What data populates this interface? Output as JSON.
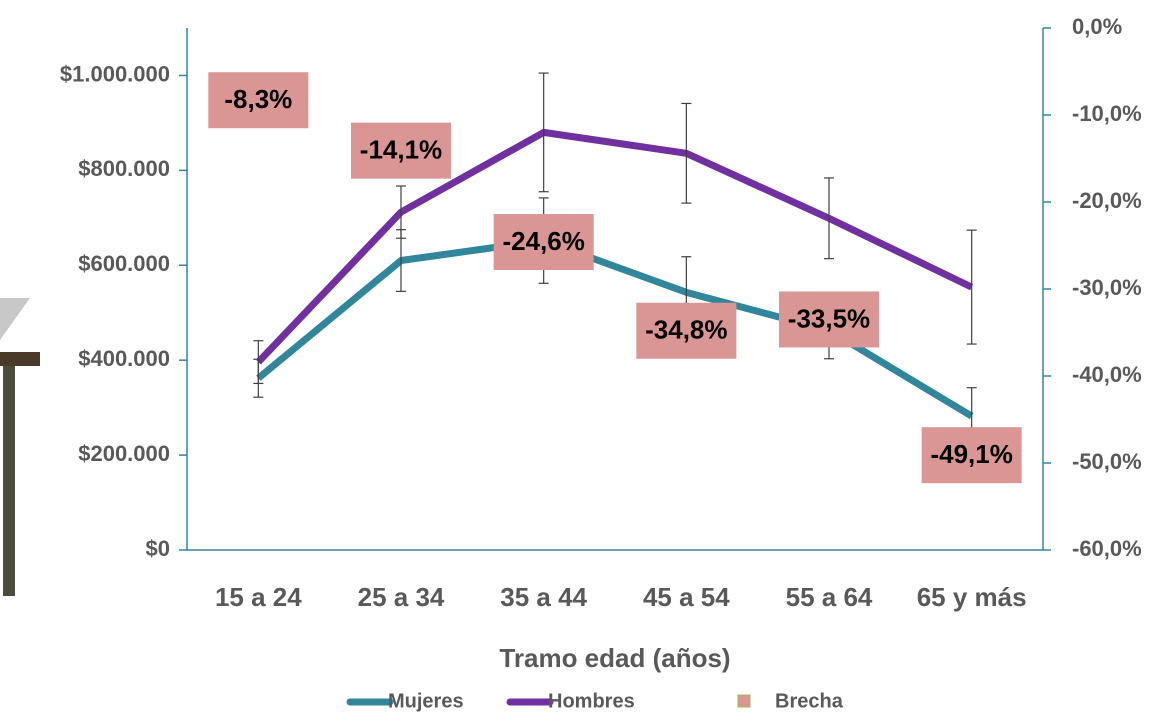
{
  "chart_data": {
    "type": "line",
    "x_label": "Tramo edad (años)",
    "categories": [
      "15 a 24",
      "25 a 34",
      "35 a 44",
      "45 a 54",
      "55 a 64",
      "65 y más"
    ],
    "series": [
      {
        "name": "Mujeres",
        "color": "#31869b",
        "values": [
          362000,
          610000,
          652000,
          543000,
          463000,
          282000
        ],
        "errors": [
          40000,
          65000,
          90000,
          75000,
          60000,
          60000
        ]
      },
      {
        "name": "Hombres",
        "color": "#7030a0",
        "values": [
          396000,
          712000,
          880000,
          836000,
          699000,
          554000
        ],
        "errors": [
          45000,
          55000,
          125000,
          105000,
          85000,
          120000
        ]
      },
      {
        "name": "Brecha",
        "color": "#da9694",
        "axis": "y2",
        "values": [
          -8.3,
          -14.1,
          -24.6,
          -34.8,
          -33.5,
          -49.1
        ],
        "value_labels": [
          "-8,3%",
          "-14,1%",
          "-24,6%",
          "-34,8%",
          "-33,5%",
          "-49,1%"
        ]
      }
    ],
    "ylim": [
      0,
      1100000
    ],
    "yticks": [
      {
        "value": 0,
        "label": "$0"
      },
      {
        "value": 200000,
        "label": "$200.000"
      },
      {
        "value": 400000,
        "label": "$400.000"
      },
      {
        "value": 600000,
        "label": "$600.000"
      },
      {
        "value": 800000,
        "label": "$800.000"
      },
      {
        "value": 1000000,
        "label": "$1.000.000"
      }
    ],
    "y2lim": [
      -60,
      0
    ],
    "y2ticks": [
      {
        "value": -60,
        "label": "-60,0%"
      },
      {
        "value": -50,
        "label": "-50,0%"
      },
      {
        "value": -40,
        "label": "-40,0%"
      },
      {
        "value": -30,
        "label": "-30,0%"
      },
      {
        "value": -20,
        "label": "-20,0%"
      },
      {
        "value": -10,
        "label": "-10,0%"
      },
      {
        "value": 0,
        "label": "0,0%"
      }
    ],
    "legend": "bottom"
  }
}
